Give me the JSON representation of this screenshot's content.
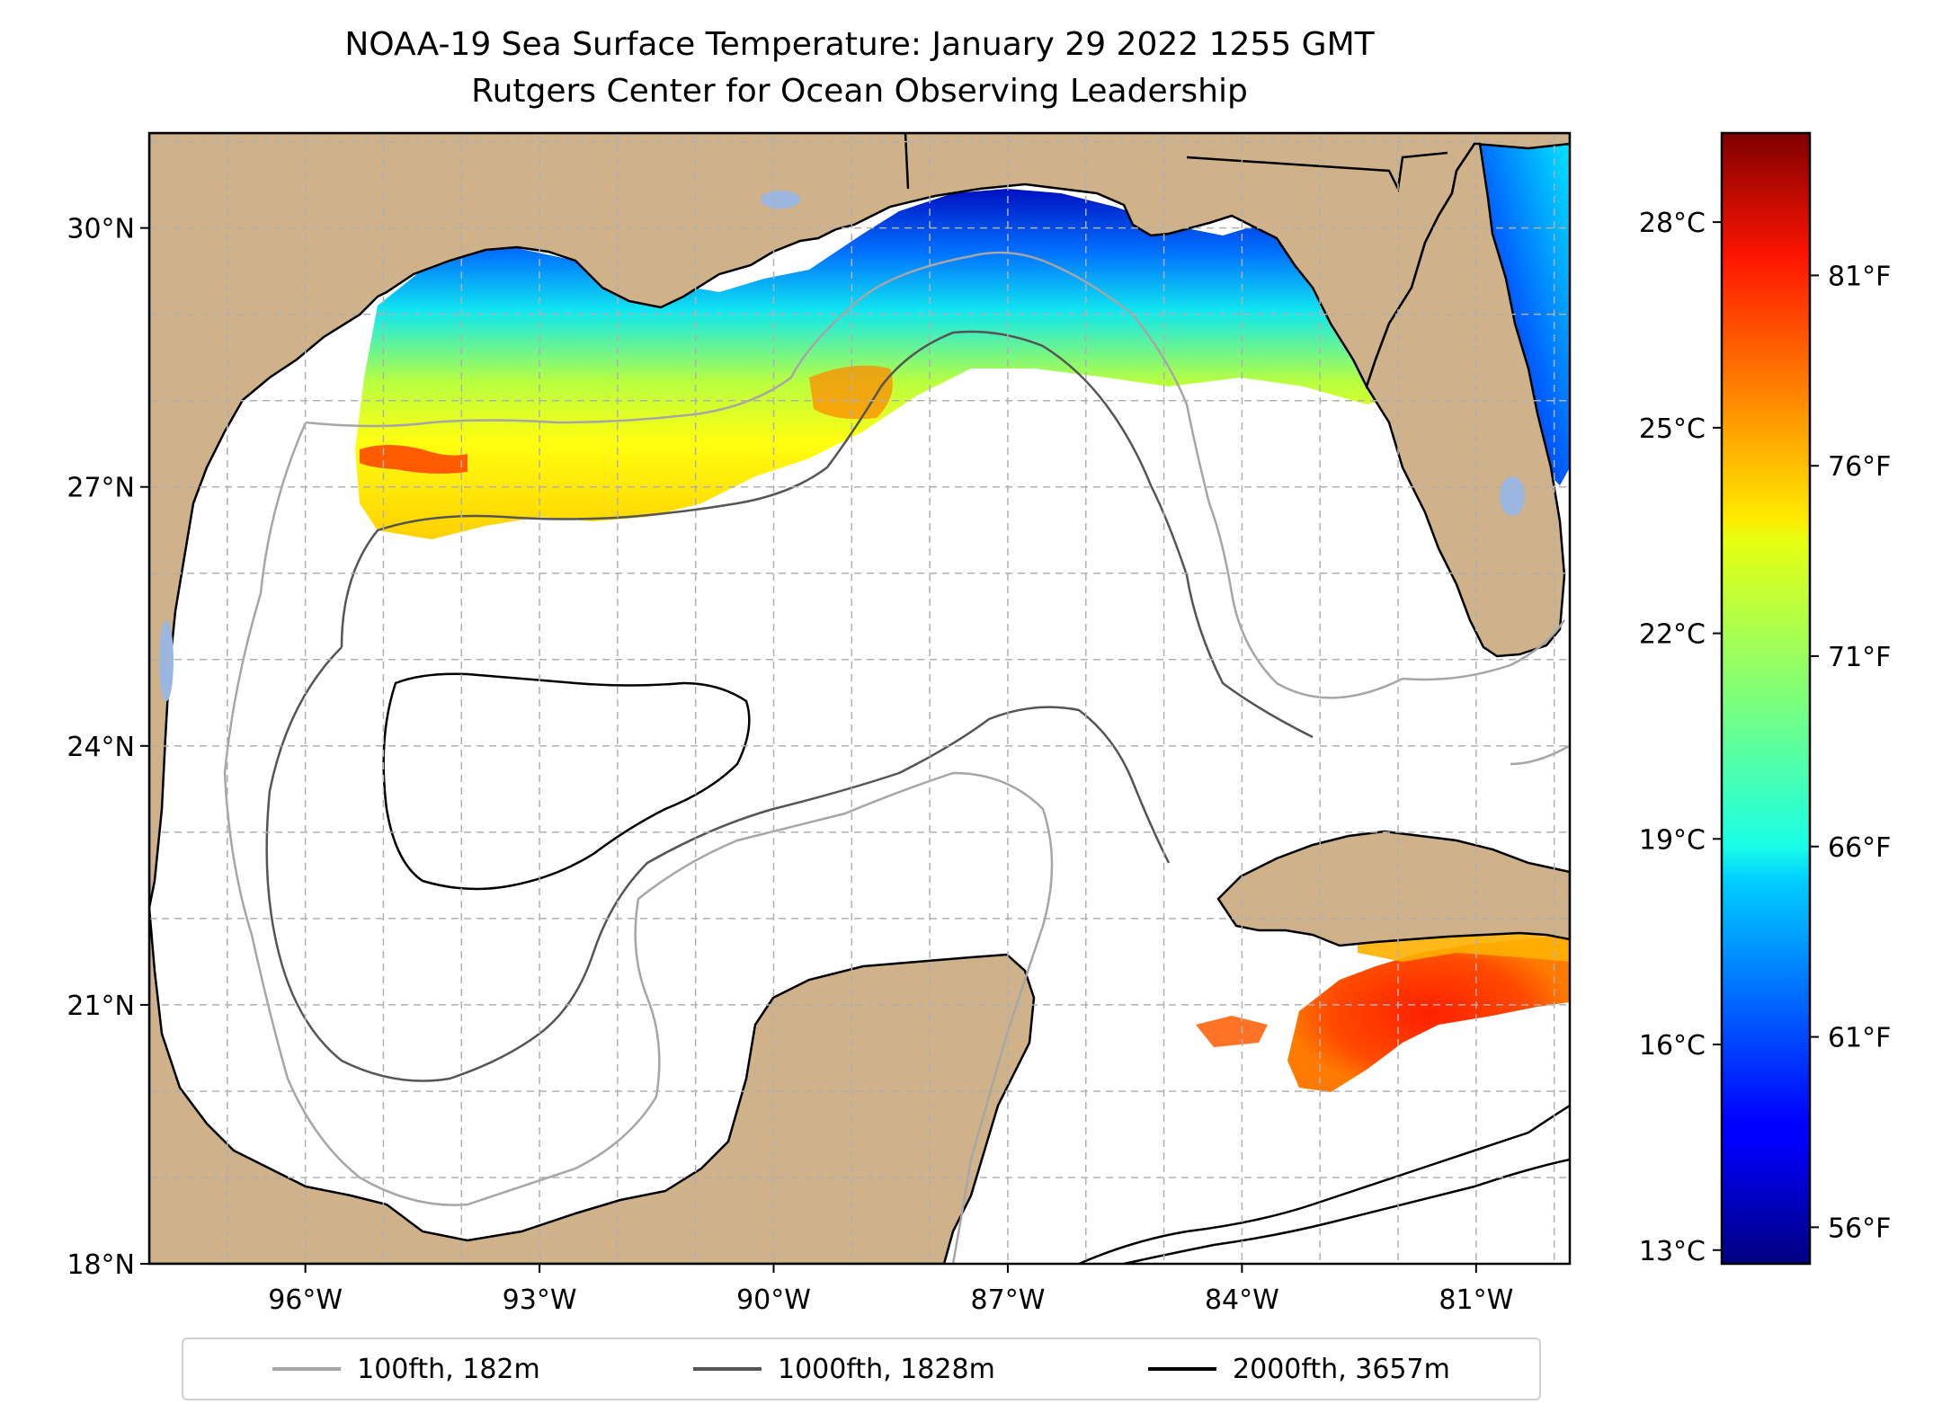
{
  "title": {
    "line1": "NOAA-19 Sea Surface Temperature: January 29 2022 1255 GMT",
    "line2": "Rutgers Center for Ocean Observing Leadership"
  },
  "map": {
    "lon_range": [
      -98,
      -79.8
    ],
    "lat_range": [
      18,
      31.1
    ],
    "lat_ticks": [
      {
        "value": 30,
        "label": "30°N"
      },
      {
        "value": 27,
        "label": "27°N"
      },
      {
        "value": 24,
        "label": "24°N"
      },
      {
        "value": 21,
        "label": "21°N"
      },
      {
        "value": 18,
        "label": "18°N"
      }
    ],
    "lon_ticks": [
      {
        "value": -96,
        "label": "96°W"
      },
      {
        "value": -93,
        "label": "93°W"
      },
      {
        "value": -90,
        "label": "90°W"
      },
      {
        "value": -87,
        "label": "87°W"
      },
      {
        "value": -84,
        "label": "84°W"
      },
      {
        "value": -81,
        "label": "81°W"
      }
    ],
    "colors": {
      "land": "#cfb28a",
      "lakes": "#9bb6e0",
      "ocean_no_data": "#ffffff",
      "grid": "#b0b0b0"
    }
  },
  "colorbar": {
    "colormap": "jet",
    "celsius_range": [
      12.8,
      29.3
    ],
    "celsius_ticks": [
      {
        "value": 28,
        "label": "28°C"
      },
      {
        "value": 25,
        "label": "25°C"
      },
      {
        "value": 22,
        "label": "22°C"
      },
      {
        "value": 19,
        "label": "19°C"
      },
      {
        "value": 16,
        "label": "16°C"
      },
      {
        "value": 13,
        "label": "13°C"
      }
    ],
    "fahrenheit_ticks": [
      {
        "value": 81,
        "label": "81°F"
      },
      {
        "value": 76,
        "label": "76°F"
      },
      {
        "value": 71,
        "label": "71°F"
      },
      {
        "value": 66,
        "label": "66°F"
      },
      {
        "value": 61,
        "label": "61°F"
      },
      {
        "value": 56,
        "label": "56°F"
      }
    ]
  },
  "legend": {
    "items": [
      {
        "label": "100fth, 182m",
        "color": "#a6a6a6"
      },
      {
        "label": "1000fth, 1828m",
        "color": "#555555"
      },
      {
        "label": "2000fth, 3657m",
        "color": "#000000"
      }
    ]
  }
}
